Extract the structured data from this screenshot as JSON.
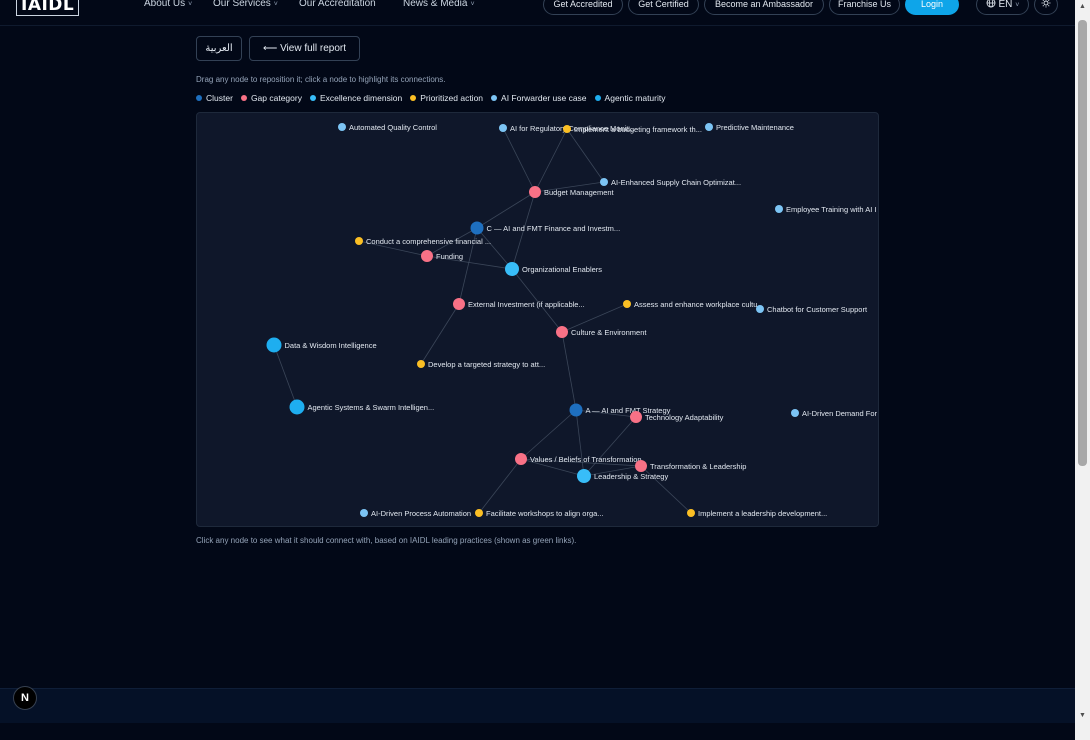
{
  "nav": {
    "logo": "IAIDL",
    "links": [
      "About Us",
      "Our Services",
      "Our Accreditation",
      "News & Media"
    ],
    "caret": "˅",
    "pills": [
      "Get Accredited",
      "Get Certified",
      "Become an Ambassador",
      "Franchise Us",
      "Login"
    ],
    "language": "EN",
    "language_icon": "globe-icon",
    "theme_icon": "sun-icon"
  },
  "toolbar": {
    "arabic_label": "العربية",
    "view_full_report": "⟵ View full report",
    "drag_hint": "Drag any node to reposition it; click a node to highlight its connections."
  },
  "legend": [
    {
      "label": "Cluster",
      "color": "#1e6fbf"
    },
    {
      "label": "Gap category",
      "color": "#f87186"
    },
    {
      "label": "Excellence dimension",
      "color": "#38bdf8"
    },
    {
      "label": "Prioritized action",
      "color": "#fbbf24"
    },
    {
      "label": "AI Forwarder use case",
      "color": "#7cc4f4"
    },
    {
      "label": "Agentic maturity",
      "color": "#1eaef0"
    }
  ],
  "graph": {
    "nodes": [
      {
        "id": "n1",
        "label": "Automated Quality Control",
        "type": "usecase"
      },
      {
        "id": "n2",
        "label": "AI for Regulatory Compliance Monit...",
        "type": "usecase"
      },
      {
        "id": "n3",
        "label": "Implement a budgeting framework th...",
        "type": "action"
      },
      {
        "id": "n4",
        "label": "Predictive Maintenance",
        "type": "usecase"
      },
      {
        "id": "n5",
        "label": "AI-Enhanced Supply Chain Optimizat...",
        "type": "usecase"
      },
      {
        "id": "n6",
        "label": "Budget Management",
        "type": "gap"
      },
      {
        "id": "n7",
        "label": "Employee Training with AI I",
        "type": "usecase"
      },
      {
        "id": "n8",
        "label": "C — AI and FMT Finance and Investm...",
        "type": "cluster"
      },
      {
        "id": "n9",
        "label": "Conduct a comprehensive financial ...",
        "type": "action"
      },
      {
        "id": "n10",
        "label": "Funding",
        "type": "gap"
      },
      {
        "id": "n11",
        "label": "Organizational Enablers",
        "type": "dimension"
      },
      {
        "id": "n12",
        "label": "External Investment (if applicable...",
        "type": "gap"
      },
      {
        "id": "n13",
        "label": "Assess and enhance workplace cultu",
        "type": "action"
      },
      {
        "id": "n14",
        "label": "Chatbot for Customer Support",
        "type": "usecase"
      },
      {
        "id": "n15",
        "label": "Culture & Environment",
        "type": "gap"
      },
      {
        "id": "n16",
        "label": "Data & Wisdom Intelligence",
        "type": "agentic"
      },
      {
        "id": "n17",
        "label": "Develop a targeted strategy to att...",
        "type": "action"
      },
      {
        "id": "n18",
        "label": "Agentic Systems & Swarm Intelligen...",
        "type": "agentic"
      },
      {
        "id": "n19",
        "label": "A — AI and FMT Strategy",
        "type": "cluster"
      },
      {
        "id": "n20",
        "label": "Technology Adaptability",
        "type": "gap"
      },
      {
        "id": "n21",
        "label": "AI-Driven Demand For",
        "type": "usecase"
      },
      {
        "id": "n22",
        "label": "Values / Beliefs of Transformation",
        "type": "gap"
      },
      {
        "id": "n23",
        "label": "Transformation & Leadership",
        "type": "gap"
      },
      {
        "id": "n24",
        "label": "Leadership & Strategy",
        "type": "dimension"
      },
      {
        "id": "n25",
        "label": "AI-Driven Process Automation",
        "type": "usecase"
      },
      {
        "id": "n26",
        "label": "Facilitate workshops to align orga...",
        "type": "action"
      },
      {
        "id": "n27",
        "label": "Implement a leadership development...",
        "type": "action"
      }
    ]
  },
  "footer_hint": "Click any node to see what it should connect with, based on IAIDL leading practices (shown as green links).",
  "dev_badge": "N"
}
